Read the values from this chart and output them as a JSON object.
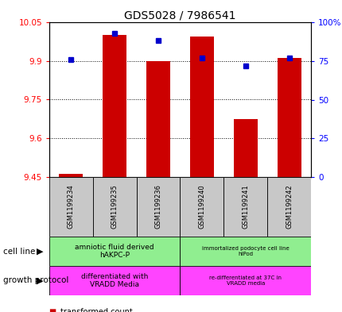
{
  "title": "GDS5028 / 7986541",
  "samples": [
    "GSM1199234",
    "GSM1199235",
    "GSM1199236",
    "GSM1199240",
    "GSM1199241",
    "GSM1199242"
  ],
  "red_values": [
    9.462,
    10.0,
    9.9,
    9.995,
    9.676,
    9.91
  ],
  "blue_values": [
    76,
    93,
    88,
    77,
    72,
    77
  ],
  "ylim_left": [
    9.45,
    10.05
  ],
  "ylim_right": [
    0,
    100
  ],
  "yticks_left": [
    9.45,
    9.6,
    9.75,
    9.9,
    10.05
  ],
  "yticks_right": [
    0,
    25,
    50,
    75,
    100
  ],
  "ytick_labels_right": [
    "0",
    "25",
    "50",
    "75",
    "100%"
  ],
  "cell_line_labels": [
    "amniotic fluid derived\nhAKPC-P",
    "immortalized podocyte cell line\nhIPod"
  ],
  "growth_protocol_labels": [
    "differentiated with\nVRADD Media",
    "re-differentiated at 37C in\nVRADD media"
  ],
  "cell_line_color": "#90EE90",
  "growth_protocol_color": "#FF44FF",
  "sample_bg_color": "#C8C8C8",
  "bar_color": "#CC0000",
  "dot_color": "#0000CC",
  "base_value": 9.45,
  "figsize": [
    4.31,
    3.93
  ],
  "dpi": 100
}
